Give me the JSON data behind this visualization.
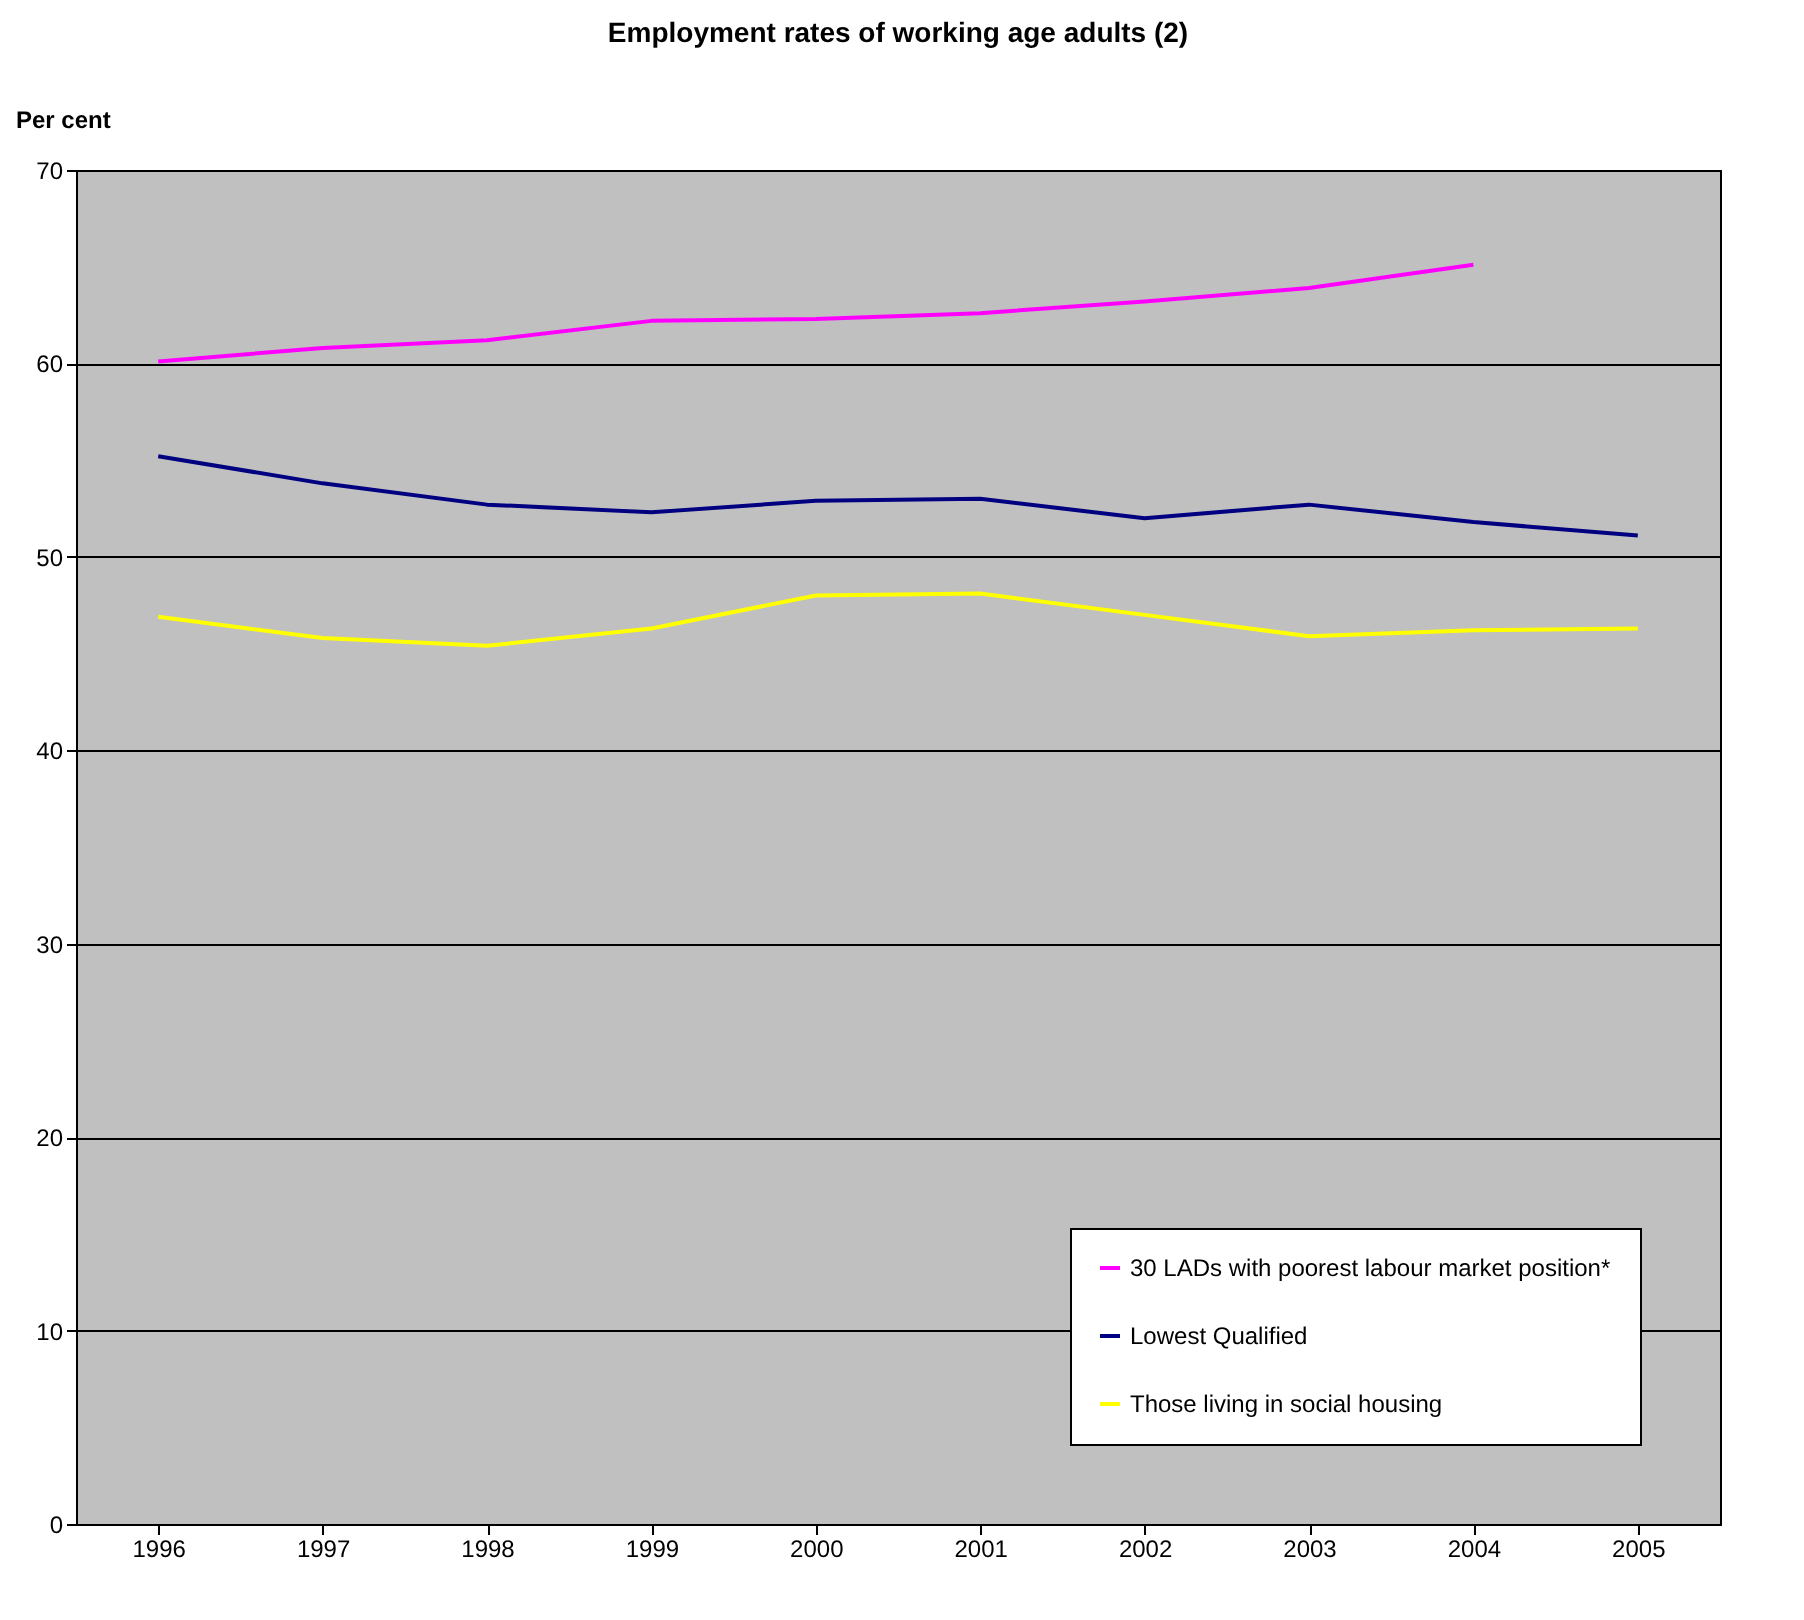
{
  "chart_data": {
    "type": "line",
    "title": "Employment rates of working age adults (2)",
    "ylabel": "Per cent",
    "categories": [
      "1996",
      "1997",
      "1998",
      "1999",
      "2000",
      "2001",
      "2002",
      "2003",
      "2004",
      "2005"
    ],
    "series": [
      {
        "name": "30 LADs with poorest labour market position*",
        "color": "#ff00ff",
        "values": [
          60.1,
          60.8,
          61.2,
          62.2,
          62.3,
          62.6,
          63.2,
          63.9,
          65.1,
          null
        ]
      },
      {
        "name": "Lowest Qualified",
        "color": "#000080",
        "values": [
          55.2,
          53.8,
          52.7,
          52.3,
          52.9,
          53.0,
          52.0,
          52.7,
          51.8,
          51.1
        ]
      },
      {
        "name": "Those living in social housing",
        "color": "#ffff00",
        "values": [
          46.9,
          45.8,
          45.4,
          46.3,
          48.0,
          48.1,
          47.0,
          45.9,
          46.2,
          46.3
        ]
      }
    ],
    "ylim": [
      0,
      70
    ],
    "yticks": [
      0,
      10,
      20,
      30,
      40,
      50,
      60,
      70
    ],
    "grid": "y",
    "legend": "bottom right",
    "marker": "none",
    "line_style": "solid"
  }
}
